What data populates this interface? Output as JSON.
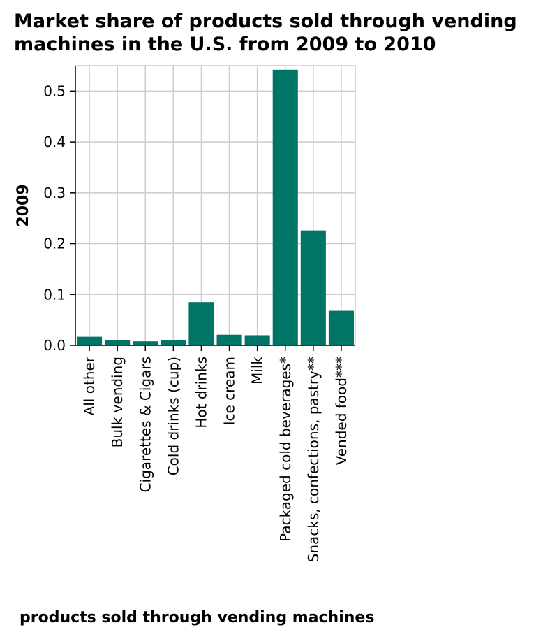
{
  "title": "Market share of products sold through vending machines in the U.S. from 2009 to 2010",
  "chart_data": {
    "type": "bar",
    "categories": [
      "All other",
      "Bulk vending",
      "Cigarettes & Cigars",
      "Cold drinks (cup)",
      "Hot drinks",
      "Ice cream",
      "Milk",
      "Packaged cold beverages*",
      "Snacks, confections, pastry**",
      "Vended food***"
    ],
    "values": [
      0.017,
      0.011,
      0.008,
      0.011,
      0.085,
      0.021,
      0.02,
      0.542,
      0.226,
      0.068
    ],
    "title": "Market share of products sold through vending machines in the U.S. from 2009 to 2010",
    "xlabel": "products sold through vending machines",
    "ylabel": "2009",
    "ylim": [
      0,
      0.55
    ],
    "yticks": [
      0.0,
      0.1,
      0.2,
      0.3,
      0.4,
      0.5
    ],
    "ytick_labels": [
      "0.0",
      "0.1",
      "0.2",
      "0.3",
      "0.4",
      "0.5"
    ],
    "grid": true,
    "bar_color": "#007566",
    "grid_color": "#cccccc"
  }
}
